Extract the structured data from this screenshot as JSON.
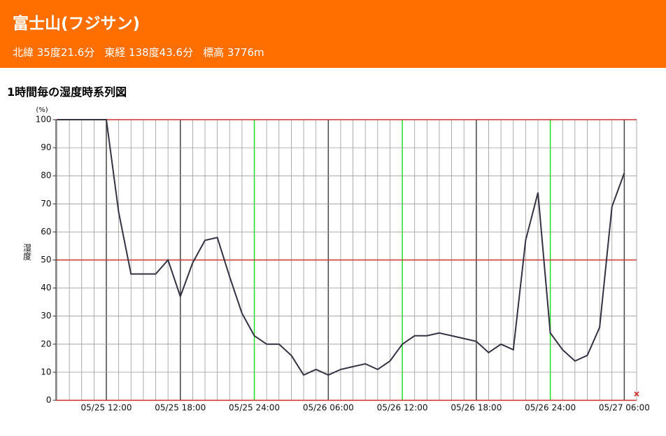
{
  "header": {
    "title": "富士山(フジサン)",
    "latitude": "北緯 35度21.6分",
    "longitude": "東経 138度43.6分",
    "elevation": "標高 3776m"
  },
  "chart_data": {
    "type": "line",
    "title": "1時間毎の湿度時系列図",
    "y_unit": "(%)",
    "y_label": "湿度",
    "categories": [
      null,
      null,
      null,
      null,
      "05/25 12:00",
      null,
      null,
      null,
      null,
      null,
      "05/25 18:00",
      null,
      null,
      null,
      null,
      null,
      "05/25 24:00",
      null,
      null,
      null,
      null,
      null,
      "05/26 06:00",
      null,
      null,
      null,
      null,
      null,
      "05/26 12:00",
      null,
      null,
      null,
      null,
      null,
      "05/26 18:00",
      null,
      null,
      null,
      null,
      null,
      "05/26 24:00",
      null,
      null,
      null,
      null,
      null,
      "05/27 06:00",
      null
    ],
    "series": [
      {
        "name": "湿度",
        "color": "#333344",
        "values": [
          100,
          100,
          100,
          100,
          100,
          67,
          45,
          45,
          45,
          50,
          37,
          49,
          57,
          58,
          44,
          31,
          23,
          20,
          20,
          16,
          9,
          11,
          9,
          11,
          12,
          13,
          11,
          14,
          20,
          23,
          23,
          24,
          23,
          22,
          21,
          17,
          20,
          18,
          57,
          74,
          24,
          18,
          14,
          16,
          26,
          69,
          81,
          null
        ]
      }
    ],
    "ylim": [
      0,
      100
    ],
    "yticks": [
      0,
      10,
      20,
      30,
      40,
      50,
      60,
      70,
      80,
      90,
      100
    ],
    "reference_lines": [
      0,
      50,
      100
    ],
    "reference_color": "#cc3333",
    "grid": true
  }
}
